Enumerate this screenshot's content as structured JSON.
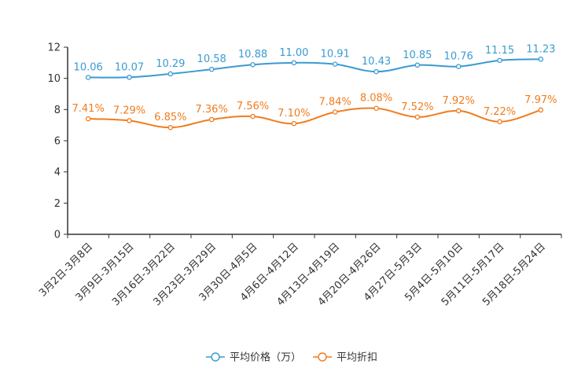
{
  "chart_data": {
    "type": "line",
    "title": "",
    "xlabel": "",
    "ylabel": "",
    "ylim": [
      0,
      12
    ],
    "yticks": [
      0,
      2,
      4,
      6,
      8,
      10,
      12
    ],
    "grid": false,
    "legend_position": "bottom-center",
    "categories": [
      "3月2日-3月8日",
      "3月9日-3月15日",
      "3月16日-3月22日",
      "3月23日-3月29日",
      "3月30日-4月5日",
      "4月6日-4月12日",
      "4月13日-4月19日",
      "4月20日-4月26日",
      "4月27日-5月3日",
      "5月4日-5月10日",
      "5月11日-5月17日",
      "5月18日-5月24日"
    ],
    "series": [
      {
        "name": "平均价格（万）",
        "color": "#3a9bd0",
        "values": [
          10.06,
          10.07,
          10.29,
          10.58,
          10.88,
          11.0,
          10.91,
          10.43,
          10.85,
          10.76,
          11.15,
          11.23
        ],
        "labels": [
          "10.06",
          "10.07",
          "10.29",
          "10.58",
          "10.88",
          "11.00",
          "10.91",
          "10.43",
          "10.85",
          "10.76",
          "11.15",
          "11.23"
        ]
      },
      {
        "name": "平均折扣",
        "color": "#f07c1e",
        "values": [
          7.41,
          7.29,
          6.85,
          7.36,
          7.56,
          7.1,
          7.84,
          8.08,
          7.52,
          7.92,
          7.22,
          7.97
        ],
        "labels": [
          "7.41%",
          "7.29%",
          "6.85%",
          "7.36%",
          "7.56%",
          "7.10%",
          "7.84%",
          "8.08%",
          "7.52%",
          "7.92%",
          "7.22%",
          "7.97%"
        ]
      }
    ]
  }
}
